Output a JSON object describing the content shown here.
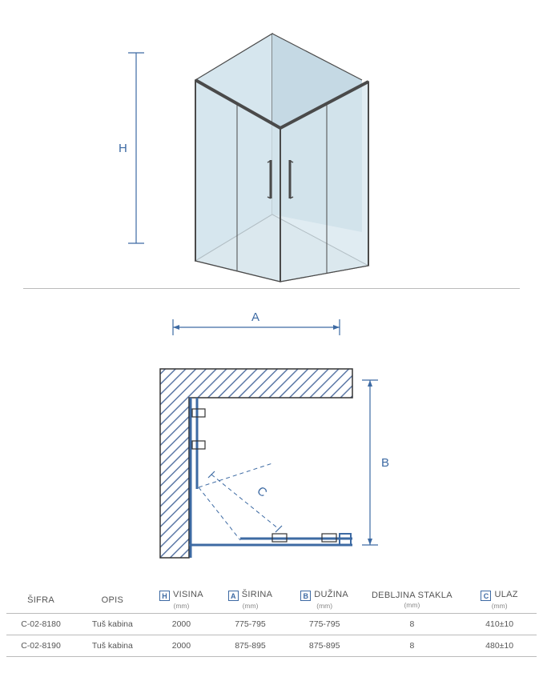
{
  "colors": {
    "dim": "#3d6aa3",
    "glass": "#d6e6ee",
    "frame": "#4a4a4a",
    "hatch": "#5c78a6",
    "line": "#bbbbbb"
  },
  "top_diagram": {
    "label_H": "H"
  },
  "bottom_diagram": {
    "label_A": "A",
    "label_B": "B",
    "label_C": "C"
  },
  "table": {
    "headers": [
      {
        "icon": null,
        "title": "ŠIFRA",
        "unit": ""
      },
      {
        "icon": null,
        "title": "OPIS",
        "unit": ""
      },
      {
        "icon": "H",
        "title": "VISINA",
        "unit": "(mm)"
      },
      {
        "icon": "A",
        "title": "ŠIRINA",
        "unit": "(mm)"
      },
      {
        "icon": "B",
        "title": "DUŽINA",
        "unit": "(mm)"
      },
      {
        "icon": null,
        "title": "DEBLJINA STAKLA",
        "unit": "(mm)"
      },
      {
        "icon": "C",
        "title": "ULAZ",
        "unit": "(mm)"
      }
    ],
    "rows": [
      [
        "C-02-8180",
        "Tuš kabina",
        "2000",
        "775-795",
        "775-795",
        "8",
        "410±10"
      ],
      [
        "C-02-8190",
        "Tuš kabina",
        "2000",
        "875-895",
        "875-895",
        "8",
        "480±10"
      ]
    ],
    "col_widths_pct": [
      13,
      14,
      12,
      14,
      14,
      19,
      14
    ]
  }
}
